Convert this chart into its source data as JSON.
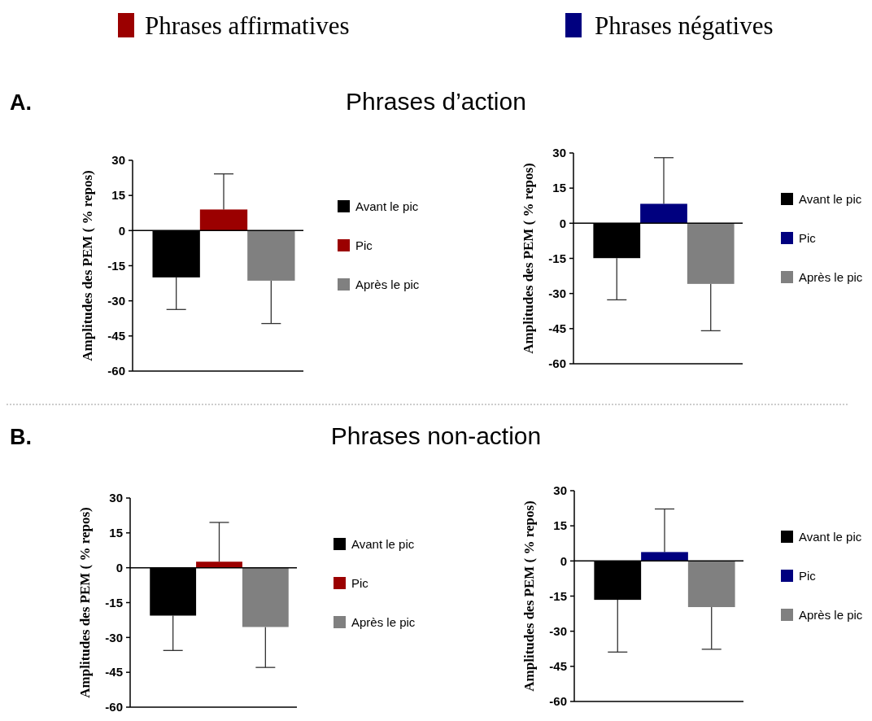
{
  "chart_data": [
    {
      "type": "bar",
      "annotations": [
        "A.",
        "Phrases affirmatives"
      ],
      "ylabel": "Amplitudes des PEM ( % repos)",
      "categories": [
        null
      ],
      "ylim": [
        -60,
        30
      ],
      "yticks": [
        -60,
        -45,
        -30,
        -15,
        0,
        15,
        30
      ],
      "legend": "right",
      "series": [
        {
          "name": "Avant le pic",
          "color": "#000000",
          "values": [
            -20
          ],
          "errors": [
            [
              -33.7,
              -20
            ]
          ]
        },
        {
          "name": "Pic",
          "color": "#9b0000",
          "values": [
            9
          ],
          "errors": [
            [
              9,
              24.2
            ]
          ]
        },
        {
          "name": "Après le pic",
          "color": "#808080",
          "values": [
            -21.4
          ],
          "errors": [
            [
              -39.7,
              -21.4
            ]
          ]
        }
      ]
    },
    {
      "type": "bar",
      "title": "Phrases d’action",
      "annotations": [
        "Phrases négatives"
      ],
      "ylabel": "Amplitudes des PEM ( % repos)",
      "categories": [
        null
      ],
      "ylim": [
        -60,
        30
      ],
      "yticks": [
        -60,
        -45,
        -30,
        -15,
        0,
        15,
        30
      ],
      "legend": "right",
      "series": [
        {
          "name": "Avant le pic",
          "color": "#000000",
          "values": [
            -14.9
          ],
          "errors": [
            [
              -32.7,
              -14.9
            ]
          ]
        },
        {
          "name": "Pic",
          "color": "#00007f",
          "values": [
            8.3
          ],
          "errors": [
            [
              8.3,
              28
            ]
          ]
        },
        {
          "name": "Après le pic",
          "color": "#808080",
          "values": [
            -25.9
          ],
          "errors": [
            [
              -45.9,
              -25.9
            ]
          ]
        }
      ]
    },
    {
      "type": "bar",
      "annotations": [
        "B."
      ],
      "ylabel": "Amplitudes des PEM ( % repos)",
      "categories": [
        null
      ],
      "ylim": [
        -60,
        30
      ],
      "yticks": [
        -60,
        -45,
        -30,
        -15,
        0,
        15,
        30
      ],
      "legend": "right",
      "series": [
        {
          "name": "Avant le pic",
          "color": "#000000",
          "values": [
            -20.6
          ],
          "errors": [
            [
              -35.6,
              -20.6
            ]
          ]
        },
        {
          "name": "Pic",
          "color": "#9b0000",
          "values": [
            2.6
          ],
          "errors": [
            [
              2.6,
              19.5
            ]
          ]
        },
        {
          "name": "Après le pic",
          "color": "#808080",
          "values": [
            -25.5
          ],
          "errors": [
            [
              -42.9,
              -25.5
            ]
          ]
        }
      ]
    },
    {
      "type": "bar",
      "title": "Phrases non-action",
      "ylabel": "Amplitudes des PEM ( % repos)",
      "categories": [
        null
      ],
      "ylim": [
        -60,
        30
      ],
      "yticks": [
        -60,
        -45,
        -30,
        -15,
        0,
        15,
        30
      ],
      "legend": "right",
      "series": [
        {
          "name": "Avant le pic",
          "color": "#000000",
          "values": [
            -16.6
          ],
          "errors": [
            [
              -38.9,
              -16.6
            ]
          ]
        },
        {
          "name": "Pic",
          "color": "#00007f",
          "values": [
            3.8
          ],
          "errors": [
            [
              3.8,
              22.2
            ]
          ]
        },
        {
          "name": "Après le pic",
          "color": "#808080",
          "values": [
            -19.7
          ],
          "errors": [
            [
              -37.7,
              -19.7
            ]
          ]
        }
      ]
    }
  ]
}
